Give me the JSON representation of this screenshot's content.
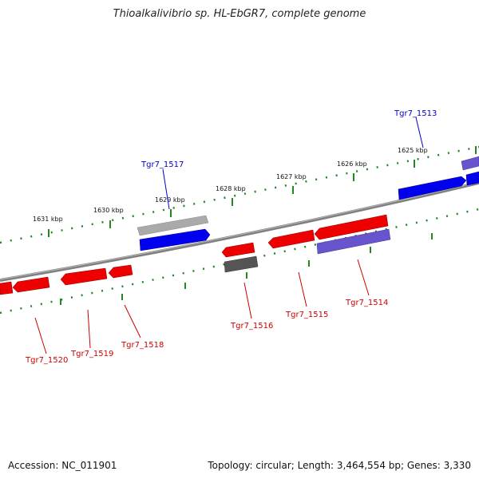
{
  "title": "Thioalkalivibrio sp. HL-EbGR7, complete genome",
  "footer": {
    "accession": "Accession: NC_011901",
    "topology": "Topology: circular; Length: 3,464,554 bp; Genes: 3,330"
  },
  "scale_labels": [
    "1625 kbp",
    "1626 kbp",
    "1627 kbp",
    "1628 kbp",
    "1629 kbp",
    "1630 kbp",
    "1631 kbp"
  ],
  "gene_labels": {
    "forward": [
      "Tgr7_1513",
      "Tgr7_1517"
    ],
    "reverse": [
      "Tgr7_1514",
      "Tgr7_1515",
      "Tgr7_1516",
      "Tgr7_1518",
      "Tgr7_1519",
      "Tgr7_1520"
    ]
  },
  "colors": {
    "forward_cds": "#0000ee",
    "reverse_cds": "#ee0000",
    "forward_label": "#0000cc",
    "reverse_label": "#cc0000",
    "backbone": "#808080",
    "ticks": "#228822",
    "grey_feature": "#aaaaaa",
    "dark_feature": "#555555",
    "purple_feature": "#6655cc"
  }
}
